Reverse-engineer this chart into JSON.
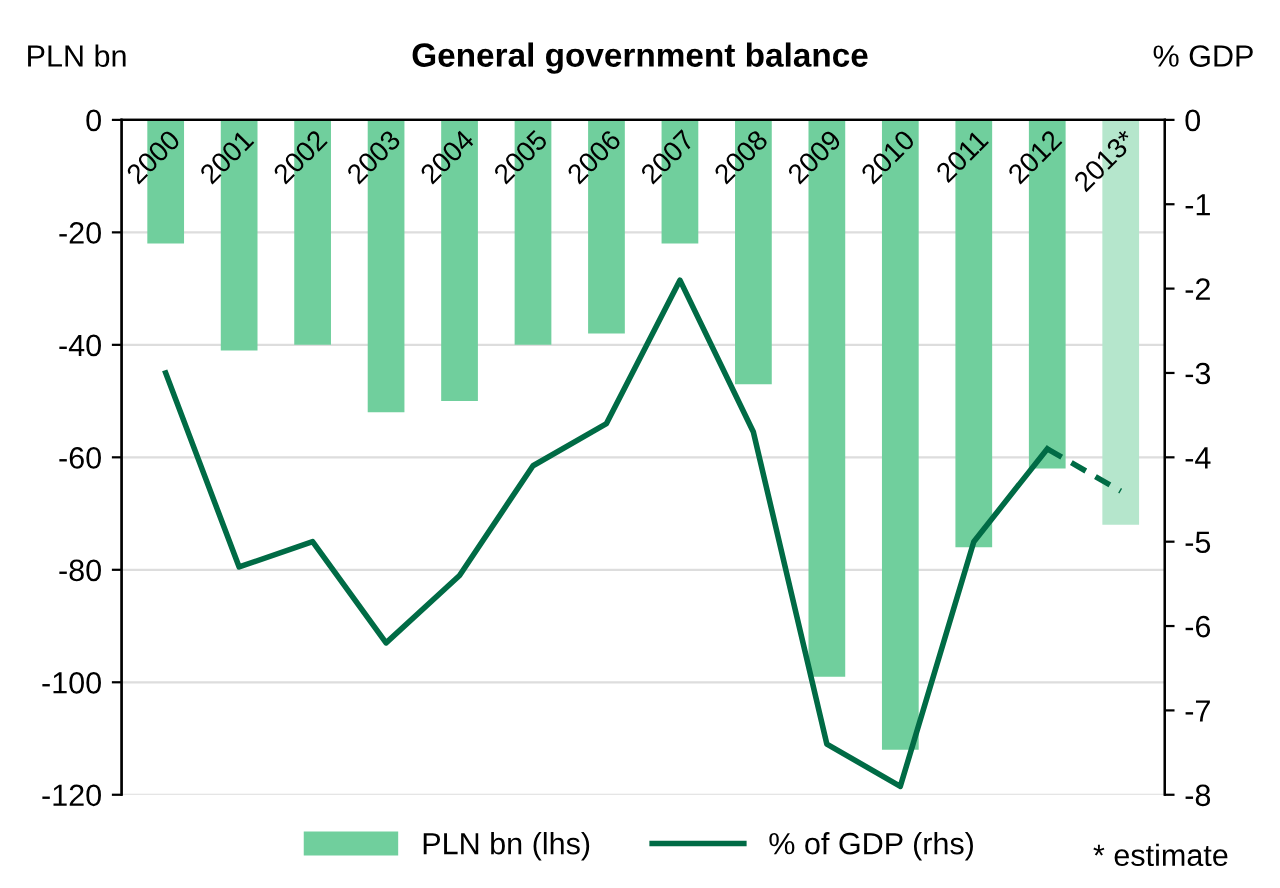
{
  "chart_data": {
    "type": "bar",
    "title": "General government balance",
    "ylabel": "PLN bn",
    "y2label": "% GDP",
    "categories": [
      "2000",
      "2001",
      "2002",
      "2003",
      "2004",
      "2005",
      "2006",
      "2007",
      "2008",
      "2009",
      "2010",
      "2011",
      "2012",
      "2013*"
    ],
    "series": [
      {
        "name": "PLN bn (lhs)",
        "color": "#70cf9d",
        "colors": [
          "#70cf9d",
          "#70cf9d",
          "#70cf9d",
          "#70cf9d",
          "#70cf9d",
          "#70cf9d",
          "#70cf9d",
          "#70cf9d",
          "#70cf9d",
          "#70cf9d",
          "#70cf9d",
          "#70cf9d",
          "#70cf9d",
          "#b5e6cc"
        ],
        "values": [
          -22,
          -41,
          -40,
          -52,
          -50,
          -40,
          -38,
          -22,
          -47,
          -99,
          -112,
          -76,
          -62,
          -72
        ]
      },
      {
        "name": "% of GDP (rhs)",
        "type": "line",
        "axis": "y2",
        "color": "#006b45",
        "line_style": "solid",
        "values": [
          -3.0,
          -5.3,
          -5.0,
          -6.2,
          -5.4,
          -4.1,
          -3.6,
          -1.9,
          -3.7,
          -7.4,
          -7.9,
          -5.0,
          -3.9,
          null
        ]
      },
      {
        "type": "line",
        "axis": "y2",
        "color": "#006b45",
        "line_style": "dashed",
        "values": [
          null,
          null,
          null,
          null,
          null,
          null,
          null,
          null,
          null,
          null,
          null,
          null,
          -3.9,
          -4.4
        ]
      }
    ],
    "ylim": [
      -120,
      0
    ],
    "yticks": [
      -120,
      -100,
      -80,
      -60,
      -40,
      -20,
      0
    ],
    "y2lim": [
      -8,
      0
    ],
    "y2ticks": [
      -8,
      -7,
      -6,
      -5,
      -4,
      -3,
      -2,
      -1,
      0
    ],
    "grid": "y",
    "legend": "bottom",
    "marker": "none",
    "annotations": [
      "* estimate"
    ]
  }
}
